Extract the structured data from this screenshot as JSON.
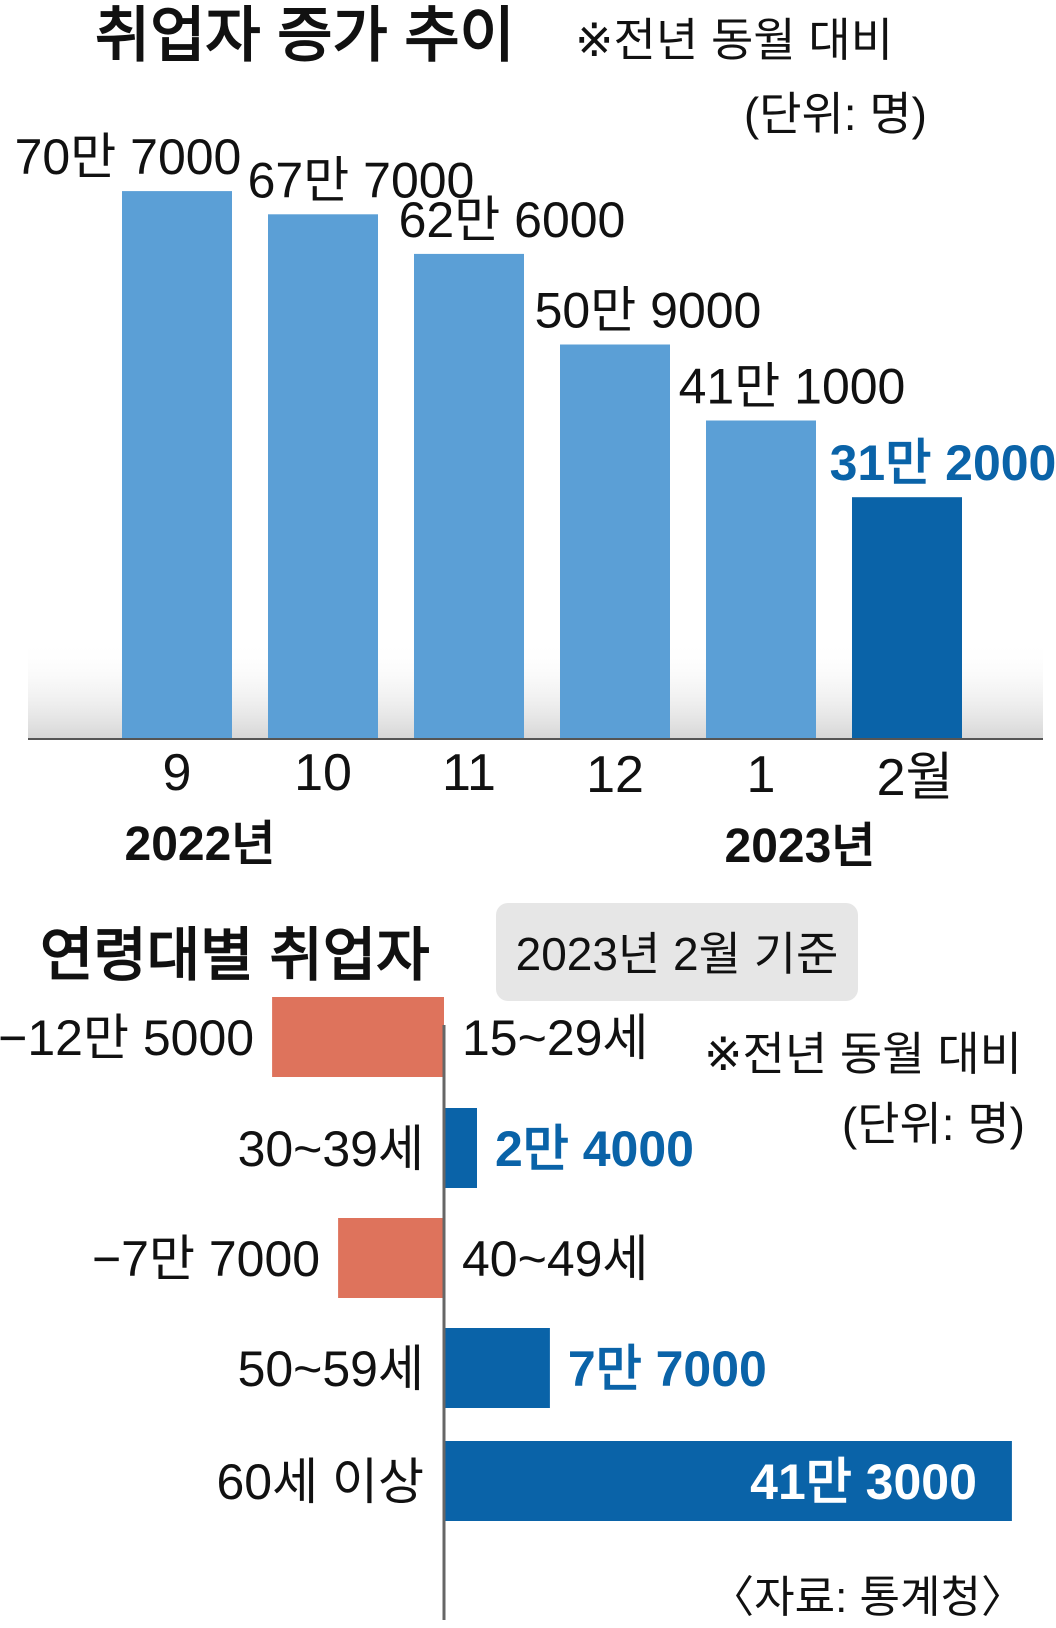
{
  "colors": {
    "bar_light": "#5b9fd6",
    "bar_dark": "#0a63a8",
    "neg_bar": "#de735c",
    "highlight_text": "#0a63a8",
    "text": "#111111",
    "badge_bg": "#e6e6e6"
  },
  "top": {
    "title": "취업자 증가 추이",
    "note": "※전년 동월 대비",
    "unit": "(단위: 명)",
    "year_left": "2022년",
    "year_right": "2023년"
  },
  "bottom": {
    "title": "연령대별 취업자",
    "badge": "2023년 2월 기준",
    "note": "※전년 동월 대비",
    "unit": "(단위: 명)",
    "source": "〈자료: 통계청〉"
  },
  "chart_data": [
    {
      "type": "bar",
      "title": "취업자 증가 추이",
      "categories": [
        "9",
        "10",
        "11",
        "12",
        "1",
        "2월"
      ],
      "values": [
        707000,
        677000,
        626000,
        509000,
        411000,
        312000
      ],
      "value_labels": [
        "70만 7000",
        "67만 7000",
        "62만 6000",
        "50만 9000",
        "41만 1000",
        "31만 2000"
      ],
      "highlight_index": 5
    },
    {
      "type": "bar",
      "orientation": "horizontal",
      "title": "연령대별 취업자",
      "categories": [
        "15~29세",
        "30~39세",
        "40~49세",
        "50~59세",
        "60세 이상"
      ],
      "values": [
        -125000,
        24000,
        -77000,
        77000,
        413000
      ],
      "value_labels": [
        "−12만 5000",
        "2만 4000",
        "−7만 7000",
        "7만 7000",
        "41만 3000"
      ]
    }
  ]
}
